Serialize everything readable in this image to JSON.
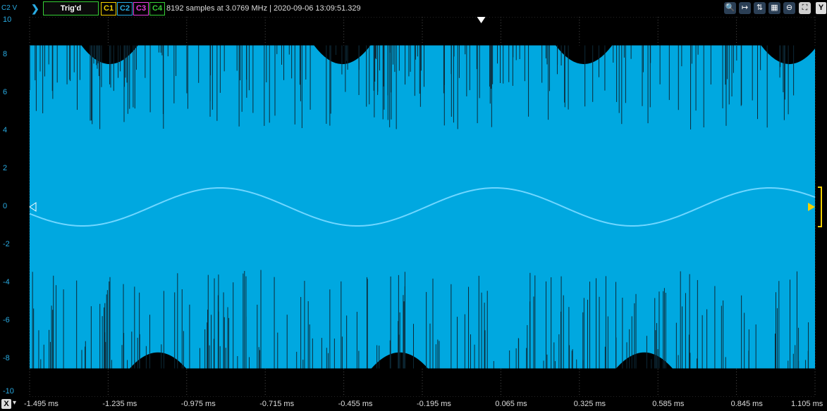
{
  "toolbar": {
    "channel_axis_label": "C2 V",
    "trigger_status": "Trig'd",
    "channels": [
      "C1",
      "C2",
      "C3",
      "C4"
    ],
    "acquisition_info": "8192 samples at 3.0769 MHz | 2020-09-06 13:09:51.329",
    "y_button": "Y"
  },
  "icons": [
    "zoom-in-icon",
    "zoom-x-icon",
    "zoom-y-icon",
    "zoom-xy-icon",
    "zoom-out-icon",
    "zoom-fit-icon"
  ],
  "xaxis": {
    "button": "X",
    "labels": [
      "-1.495 ms",
      "-1.235 ms",
      "-0.975 ms",
      "-0.715 ms",
      "-0.455 ms",
      "-0.195 ms",
      "0.065 ms",
      "0.325 ms",
      "0.585 ms",
      "0.845 ms",
      "1.105 ms"
    ]
  },
  "yaxis": {
    "labels": [
      "10",
      "8",
      "6",
      "4",
      "2",
      "0",
      "-2",
      "-4",
      "-6",
      "-8",
      "-10"
    ]
  },
  "colors": {
    "c1": "#f3d000",
    "c2": "#29abe2",
    "c3": "#e83fe0",
    "c4": "#36d036",
    "trace": "#00a8e0",
    "grid": "#4a4a4a"
  },
  "chart_data": {
    "type": "line",
    "series": [
      {
        "name": "C2",
        "x": [
          -1.495,
          -1.235,
          -0.975,
          -0.715,
          -0.455,
          -0.195,
          0.065,
          0.325,
          0.585,
          0.845,
          1.105
        ],
        "envelope_top_v": 8.5,
        "envelope_bottom_v": -8.5
      },
      {
        "name": "sine",
        "amplitude_v": 1.0,
        "period_ms": 0.91
      }
    ],
    "xlim": [
      -1.495,
      1.105
    ],
    "ylim": [
      -10,
      10
    ],
    "grid": true
  }
}
